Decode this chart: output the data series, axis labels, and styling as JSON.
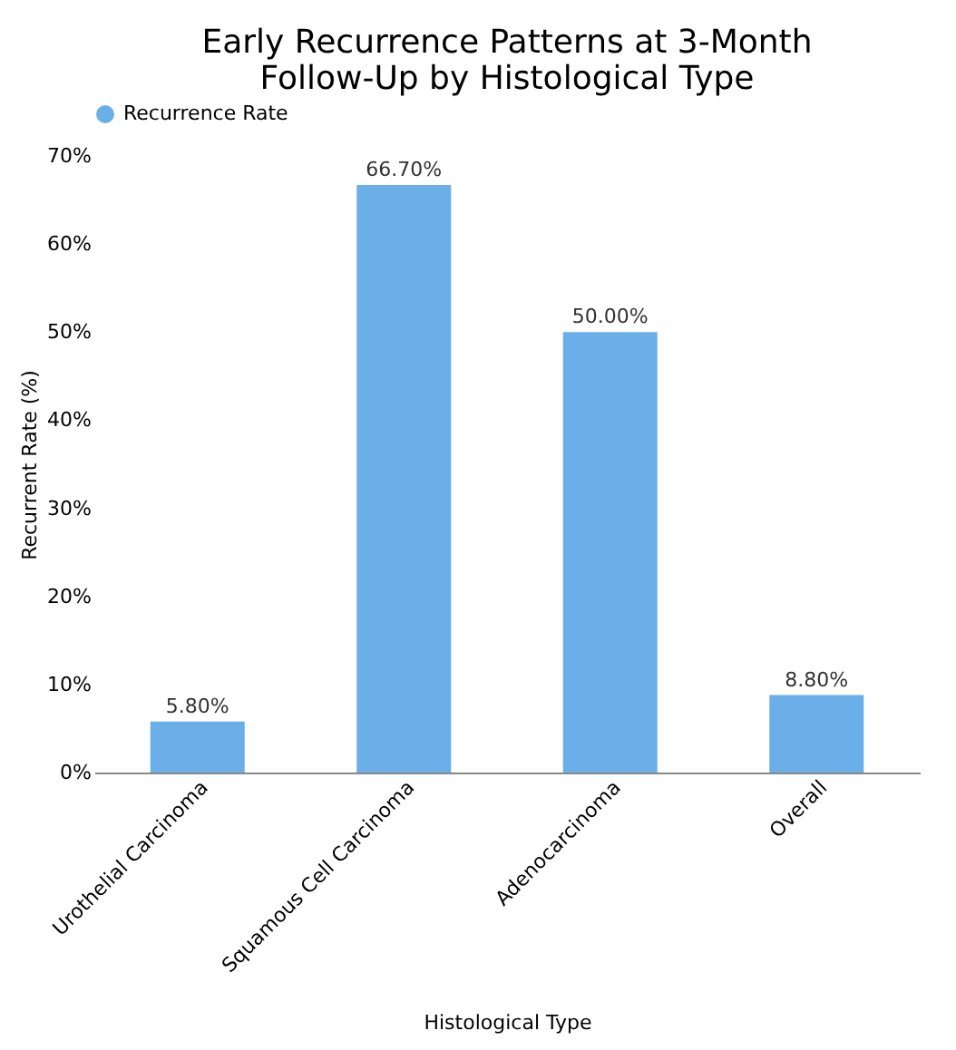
{
  "chart_data": {
    "type": "bar",
    "title": "Early Recurrence Patterns at 3-Month\nFollow-Up by Histological Type",
    "xlabel": "Histological Type",
    "ylabel": "Recurrent Rate (%)",
    "categories": [
      "Urothelial Carcinoma",
      "Squamous Cell Carcinoma",
      "Adenocarcinoma",
      "Overall"
    ],
    "series": [
      {
        "name": "Recurrence Rate",
        "color": "#6aafe8",
        "values": [
          5.8,
          66.7,
          50.0,
          8.8
        ],
        "value_labels": [
          "5.80%",
          "66.70%",
          "50.00%",
          "8.80%"
        ]
      }
    ],
    "ylim": [
      0,
      70
    ],
    "yticks": [
      {
        "value": 0,
        "label": "0%"
      },
      {
        "value": 10,
        "label": "10%"
      },
      {
        "value": 20,
        "label": "20%"
      },
      {
        "value": 30,
        "label": "30%"
      },
      {
        "value": 40,
        "label": "40%"
      },
      {
        "value": 50,
        "label": "50%"
      },
      {
        "value": 60,
        "label": "60%"
      },
      {
        "value": 70,
        "label": "70%"
      }
    ],
    "grid": false,
    "legend": "top"
  }
}
